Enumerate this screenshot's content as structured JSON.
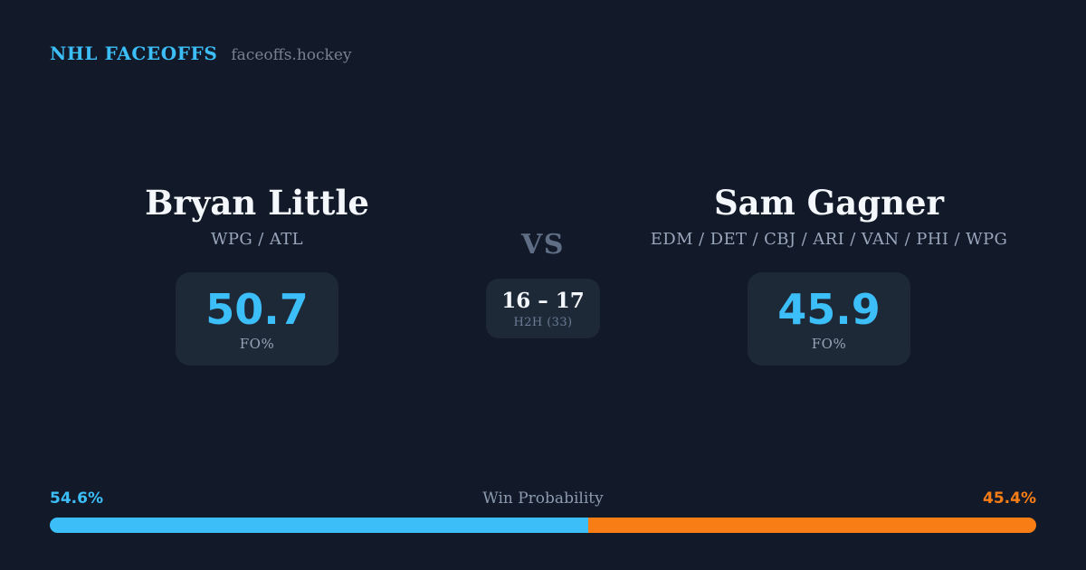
{
  "header": {
    "brand": "NHL FACEOFFS",
    "site": "faceoffs.hockey"
  },
  "matchup": {
    "vs_label": "VS",
    "h2h": {
      "score": "16 – 17",
      "label": "H2H (33)"
    },
    "players": [
      {
        "name": "Bryan Little",
        "teams": "WPG / ATL",
        "fo_pct": "50.7",
        "stat_label": "FO%"
      },
      {
        "name": "Sam Gagner",
        "teams": "EDM / DET / CBJ / ARI / VAN / PHI / WPG",
        "fo_pct": "45.9",
        "stat_label": "FO%"
      }
    ]
  },
  "win_probability": {
    "title": "Win Probability",
    "left_pct_label": "54.6%",
    "right_pct_label": "45.4%",
    "left_value": 54.6,
    "right_value": 45.4
  },
  "colors": {
    "background": "#121a2a",
    "card": "#1e2938",
    "accent_blue": "#3cbef8",
    "accent_orange": "#f97d15",
    "text_primary": "#f4f7fb",
    "text_muted": "#9aa6bb"
  }
}
